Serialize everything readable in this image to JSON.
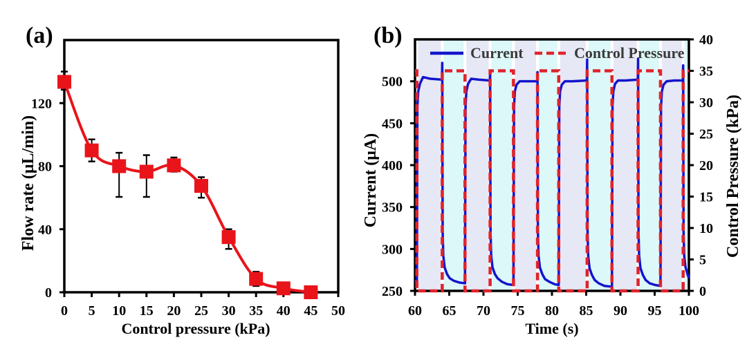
{
  "chart_data": [
    {
      "panel": "(a)",
      "type": "line",
      "title": "",
      "xlabel": "Control pressure (kPa)",
      "ylabel": "Flow rate (μL/min)",
      "xlim": [
        0,
        50
      ],
      "ylim": [
        0,
        160
      ],
      "x_ticks": [
        0,
        5,
        10,
        15,
        20,
        25,
        30,
        35,
        40,
        45,
        50
      ],
      "y_ticks": [
        0,
        40,
        80,
        120
      ],
      "grid": false,
      "legend": "none",
      "series": [
        {
          "name": "Flow rate",
          "color": "#e8141a",
          "marker": "square",
          "line": "smoothed",
          "x": [
            0,
            5,
            10,
            15,
            20,
            25,
            30,
            35,
            40,
            45
          ],
          "y": [
            133.5,
            90,
            80,
            76.5,
            80.5,
            67.5,
            35,
            8.5,
            2.5,
            0
          ],
          "error_plus": [
            6.5,
            7,
            8.5,
            10.5,
            5,
            5.5,
            5,
            4.5,
            0,
            0
          ],
          "error_minus": [
            5,
            7,
            19.5,
            16,
            4,
            7.5,
            7.5,
            4.5,
            0,
            0
          ]
        }
      ]
    },
    {
      "panel": "(b)",
      "type": "line",
      "title": "",
      "xlabel": "Time (s)",
      "ylabel": "Current (μA)",
      "ylabel_right": "Control Pressure (kPa)",
      "xlim": [
        60,
        100
      ],
      "ylim": [
        250,
        550
      ],
      "ylim_right": [
        0,
        40
      ],
      "x_ticks": [
        60,
        65,
        70,
        75,
        80,
        85,
        90,
        95,
        100
      ],
      "y_ticks": [
        250,
        300,
        350,
        400,
        450,
        500
      ],
      "y_ticks_right": [
        0,
        5,
        10,
        15,
        20,
        25,
        30,
        35,
        40
      ],
      "grid": false,
      "legend": {
        "position": "top",
        "entries": [
          {
            "label": "Current",
            "style": "solid",
            "color": "#1414cc"
          },
          {
            "label": "Control Pressure",
            "style": "dashed",
            "color": "#e0232b"
          }
        ]
      },
      "shading": {
        "pressure_off_color": "#e6e8f5",
        "pressure_on_color": "#dcf8f9"
      },
      "series": [
        {
          "name": "Current",
          "axis": "left",
          "color": "#1414cc",
          "style": "solid",
          "points": [
            [
              60.0,
              263
            ],
            [
              60.27,
              261
            ],
            [
              60.35,
              470
            ],
            [
              60.47,
              488
            ],
            [
              60.72,
              497
            ],
            [
              61.17,
              505
            ],
            [
              62.27,
              503
            ],
            [
              63.94,
              502
            ],
            [
              63.98,
              522
            ],
            [
              64.04,
              320
            ],
            [
              64.13,
              292
            ],
            [
              64.33,
              278
            ],
            [
              64.68,
              270
            ],
            [
              65.08,
              265
            ],
            [
              65.68,
              262
            ],
            [
              66.48,
              260
            ],
            [
              67.3,
              259
            ],
            [
              67.38,
              470
            ],
            [
              67.5,
              488
            ],
            [
              67.75,
              497
            ],
            [
              68.2,
              503
            ],
            [
              69.3,
              502
            ],
            [
              70.93,
              501
            ],
            [
              70.97,
              509
            ],
            [
              71.03,
              320
            ],
            [
              71.12,
              292
            ],
            [
              71.32,
              278
            ],
            [
              71.67,
              270
            ],
            [
              72.07,
              265
            ],
            [
              72.67,
              261
            ],
            [
              73.47,
              258
            ],
            [
              74.38,
              257
            ],
            [
              74.46,
              470
            ],
            [
              74.58,
              488
            ],
            [
              74.83,
              496
            ],
            [
              75.28,
              500
            ],
            [
              76.38,
              500
            ],
            [
              77.85,
              500
            ],
            [
              77.89,
              511
            ],
            [
              77.95,
              320
            ],
            [
              78.04,
              292
            ],
            [
              78.24,
              278
            ],
            [
              78.59,
              270
            ],
            [
              78.99,
              264
            ],
            [
              79.59,
              261
            ],
            [
              80.39,
              258
            ],
            [
              80.99,
              257
            ],
            [
              81.07,
              470
            ],
            [
              81.19,
              488
            ],
            [
              81.44,
              496
            ],
            [
              81.89,
              500
            ],
            [
              82.99,
              500
            ],
            [
              85.1,
              501
            ],
            [
              85.14,
              526
            ],
            [
              85.2,
              320
            ],
            [
              85.29,
              292
            ],
            [
              85.49,
              277
            ],
            [
              85.84,
              269
            ],
            [
              86.24,
              263
            ],
            [
              86.84,
              259
            ],
            [
              87.64,
              256
            ],
            [
              88.76,
              255
            ],
            [
              88.84,
              470
            ],
            [
              88.96,
              488
            ],
            [
              89.21,
              497
            ],
            [
              89.66,
              501
            ],
            [
              90.76,
              501
            ],
            [
              92.54,
              502
            ],
            [
              92.58,
              527
            ],
            [
              92.64,
              320
            ],
            [
              92.73,
              292
            ],
            [
              92.93,
              277
            ],
            [
              93.28,
              269
            ],
            [
              93.68,
              263
            ],
            [
              94.28,
              259
            ],
            [
              95.08,
              257
            ],
            [
              95.85,
              256
            ],
            [
              95.93,
              470
            ],
            [
              96.05,
              488
            ],
            [
              96.3,
              496
            ],
            [
              96.75,
              500
            ],
            [
              97.85,
              501
            ],
            [
              99.12,
              501
            ],
            [
              99.16,
              519
            ],
            [
              99.22,
              320
            ],
            [
              99.31,
              292
            ],
            [
              99.51,
              278
            ],
            [
              99.8,
              270
            ],
            [
              100.0,
              265
            ]
          ]
        },
        {
          "name": "Control Pressure",
          "axis": "right",
          "color": "#e0232b",
          "style": "dashed",
          "step": "post",
          "t": [
            60.0,
            60.27,
            63.98,
            67.3,
            70.97,
            74.38,
            77.89,
            80.99,
            85.14,
            88.76,
            92.58,
            95.85,
            99.16,
            100.0
          ],
          "p": [
            35,
            0,
            35,
            0,
            35,
            0,
            35,
            0,
            35,
            0,
            35,
            0,
            35,
            35
          ]
        }
      ]
    }
  ]
}
